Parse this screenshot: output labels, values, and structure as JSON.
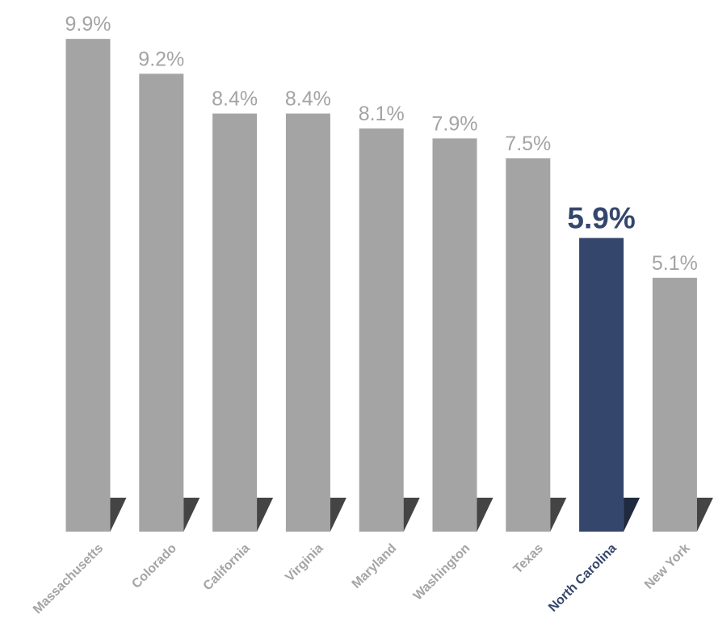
{
  "chart_data": {
    "type": "bar",
    "categories": [
      "Massachusetts",
      "Colorado",
      "California",
      "Virginia",
      "Maryland",
      "Washington",
      "Texas",
      "North Carolina",
      "New York"
    ],
    "values": [
      9.9,
      9.2,
      8.4,
      8.4,
      8.1,
      7.9,
      7.5,
      5.9,
      5.1
    ],
    "value_labels": [
      "9.9%",
      "9.2%",
      "8.4%",
      "8.4%",
      "8.1%",
      "7.9%",
      "7.5%",
      "5.9%",
      "5.1%"
    ],
    "highlight": "North Carolina",
    "ylim": [
      0,
      10
    ],
    "grid": false,
    "legend": "none",
    "colors": {
      "bar": "#a4a4a4",
      "highlight": "#34466b",
      "shadow": "#444444",
      "highlight_shadow": "#1f2a3f"
    }
  }
}
